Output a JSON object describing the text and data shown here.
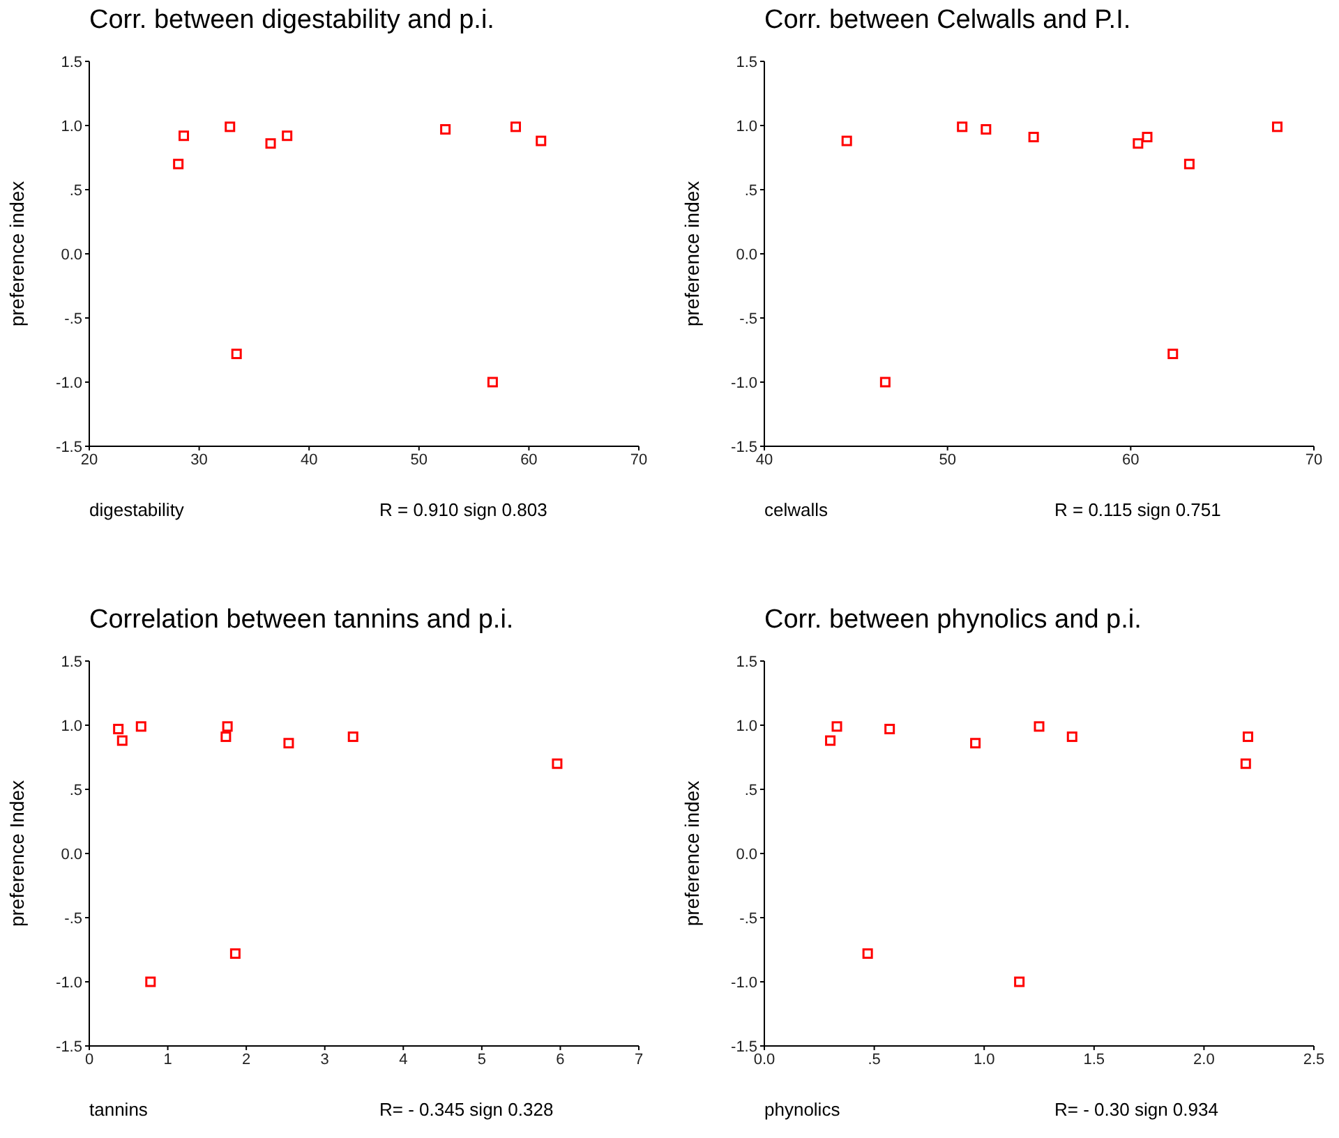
{
  "chart_data": [
    {
      "type": "scatter",
      "title": "Corr. between digestability and p.i.",
      "xlabel": "digestability",
      "ylabel": "preference index",
      "annotations": [
        "R = 0.910 sign 0.803"
      ],
      "marker": "square",
      "legend": false,
      "grid": false,
      "series": [
        {
          "color": "#ff0000",
          "x": [
            28.1,
            28.6,
            32.8,
            33.4,
            36.5,
            38.0,
            52.4,
            56.7,
            58.8,
            61.1
          ],
          "values": [
            0.7,
            0.92,
            0.99,
            -0.78,
            0.86,
            0.92,
            0.97,
            -1.0,
            0.99,
            0.88
          ]
        }
      ],
      "xlim": [
        20,
        70
      ],
      "xticks": [
        20,
        30,
        40,
        50,
        60,
        70
      ],
      "ylim": [
        -1.5,
        1.5
      ],
      "yticks": [
        {
          "value": -1.5,
          "label": "-1.5"
        },
        {
          "value": -1,
          "label": "-1.0"
        },
        {
          "value": -0.5,
          "label": "-.5"
        },
        {
          "value": 0,
          "label": "0.0"
        },
        {
          "value": 0.5,
          "label": ".5"
        },
        {
          "value": 1,
          "label": "1.0"
        },
        {
          "value": 1.5,
          "label": "1.5"
        }
      ]
    },
    {
      "type": "scatter",
      "title": "Corr. between Celwalls and P.I.",
      "xlabel": "celwalls",
      "ylabel": "preference index",
      "annotations": [
        "R = 0.115 sign 0.751"
      ],
      "marker": "square",
      "legend": false,
      "grid": false,
      "series": [
        {
          "color": "#ff0000",
          "x": [
            44.5,
            46.6,
            50.8,
            52.1,
            54.7,
            60.4,
            60.9,
            62.3,
            63.2,
            68.0
          ],
          "values": [
            0.88,
            -1.0,
            0.99,
            0.97,
            0.91,
            0.86,
            0.91,
            -0.78,
            0.7,
            0.99
          ]
        }
      ],
      "xlim": [
        40,
        70
      ],
      "xticks": [
        40,
        50,
        60,
        70
      ],
      "ylim": [
        -1.5,
        1.5
      ],
      "yticks": [
        {
          "value": -1.5,
          "label": "-1.5"
        },
        {
          "value": -1,
          "label": "-1.0"
        },
        {
          "value": -0.5,
          "label": "-.5"
        },
        {
          "value": 0,
          "label": "0.0"
        },
        {
          "value": 0.5,
          "label": ".5"
        },
        {
          "value": 1,
          "label": "1.0"
        },
        {
          "value": 1.5,
          "label": "1.5"
        }
      ]
    },
    {
      "type": "scatter",
      "title": "Correlation between tannins and p.i.",
      "xlabel": "tannins",
      "ylabel": "preference Index",
      "annotations": [
        "R= - 0.345 sign 0.328"
      ],
      "marker": "square",
      "legend": false,
      "grid": false,
      "series": [
        {
          "color": "#ff0000",
          "x": [
            0.37,
            0.42,
            0.66,
            0.78,
            1.74,
            1.76,
            1.86,
            2.54,
            3.36,
            5.96
          ],
          "values": [
            0.97,
            0.88,
            0.99,
            -1.0,
            0.91,
            0.99,
            -0.78,
            0.86,
            0.91,
            0.7
          ]
        }
      ],
      "xlim": [
        0,
        7
      ],
      "xticks": [
        0,
        1,
        2,
        3,
        4,
        5,
        6,
        7
      ],
      "ylim": [
        -1.5,
        1.5
      ],
      "yticks": [
        {
          "value": -1.5,
          "label": "-1.5"
        },
        {
          "value": -1,
          "label": "-1.0"
        },
        {
          "value": -0.5,
          "label": "-.5"
        },
        {
          "value": 0,
          "label": "0.0"
        },
        {
          "value": 0.5,
          "label": ".5"
        },
        {
          "value": 1,
          "label": "1.0"
        },
        {
          "value": 1.5,
          "label": "1.5"
        }
      ]
    },
    {
      "type": "scatter",
      "title": "Corr. between phynolics and p.i.",
      "xlabel": "phynolics",
      "ylabel": "preference index",
      "annotations": [
        "R= - 0.30 sign 0.934"
      ],
      "marker": "square",
      "legend": false,
      "grid": false,
      "series": [
        {
          "color": "#ff0000",
          "x": [
            0.3,
            0.33,
            0.47,
            0.57,
            0.96,
            1.16,
            1.25,
            1.4,
            2.19,
            2.2
          ],
          "values": [
            0.88,
            0.99,
            -0.78,
            0.97,
            0.86,
            -1.0,
            0.99,
            0.91,
            0.7,
            0.91
          ]
        }
      ],
      "xlim": [
        0,
        2.5
      ],
      "xticks": [
        {
          "value": 0,
          "label": "0.0"
        },
        {
          "value": 0.5,
          "label": ".5"
        },
        {
          "value": 1,
          "label": "1.0"
        },
        {
          "value": 1.5,
          "label": "1.5"
        },
        {
          "value": 2,
          "label": "2.0"
        },
        {
          "value": 2.5,
          "label": "2.5"
        }
      ],
      "ylim": [
        -1.5,
        1.5
      ],
      "yticks": [
        {
          "value": -1.5,
          "label": "-1.5"
        },
        {
          "value": -1,
          "label": "-1.0"
        },
        {
          "value": -0.5,
          "label": "-.5"
        },
        {
          "value": 0,
          "label": "0.0"
        },
        {
          "value": 0.5,
          "label": ".5"
        },
        {
          "value": 1,
          "label": "1.0"
        },
        {
          "value": 1.5,
          "label": "1.5"
        }
      ]
    }
  ]
}
